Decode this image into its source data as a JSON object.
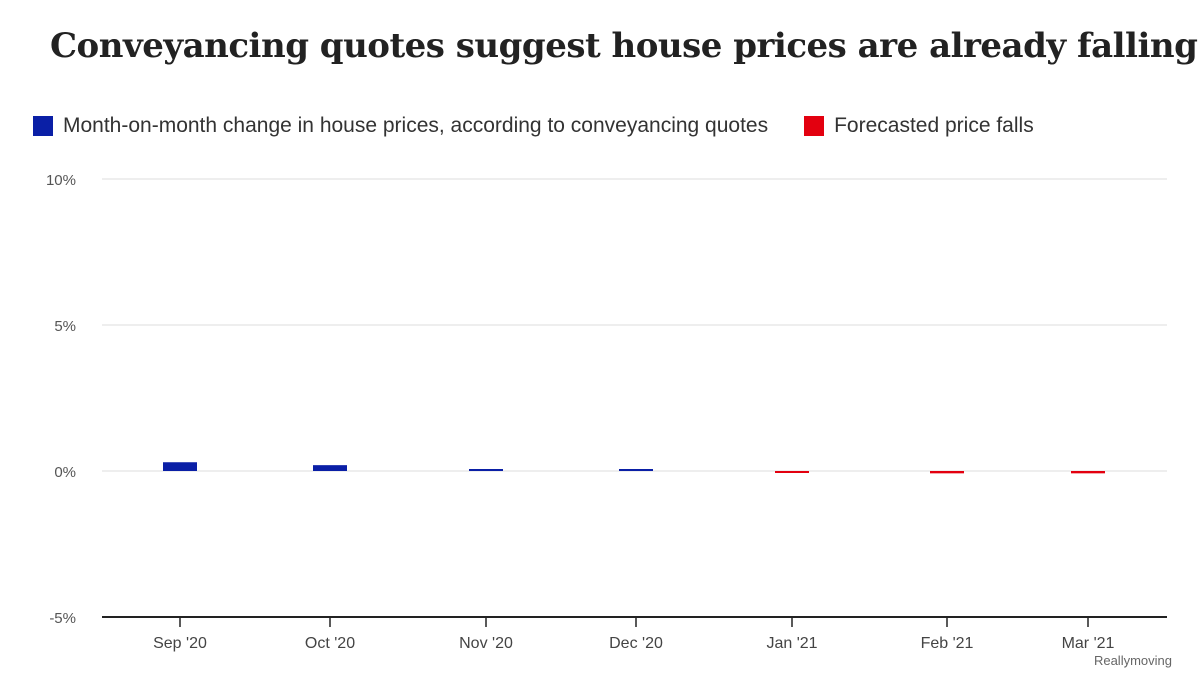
{
  "title": "Conveyancing quotes suggest house prices are already falling",
  "legend": [
    {
      "label": "Month-on-month change in house prices, according to conveyancing quotes",
      "color": "#0a1fa6"
    },
    {
      "label": "Forecasted price falls",
      "color": "#e3000f"
    }
  ],
  "source": "Reallymoving",
  "chart_data": {
    "type": "bar",
    "categories": [
      "Sep '20",
      "Oct '20",
      "Nov '20",
      "Dec '20",
      "Jan '21",
      "Feb '21",
      "Mar '21"
    ],
    "series": [
      {
        "name": "Month-on-month change in house prices, according to conveyancing quotes",
        "color": "#0a1fa6",
        "values": [
          0.3,
          0.2,
          0.03,
          0.05,
          null,
          null,
          null
        ]
      },
      {
        "name": "Forecasted price falls",
        "color": "#e3000f",
        "values": [
          null,
          null,
          null,
          null,
          -0.03,
          -0.08,
          -0.08
        ]
      }
    ],
    "yticks": [
      "10%",
      "5%",
      "0%",
      "-5%"
    ],
    "ytick_values": [
      10,
      5,
      0,
      -5
    ],
    "ylim": [
      -5,
      10
    ],
    "grid": true,
    "legend_position": "top-left",
    "xlabel": "",
    "ylabel": ""
  }
}
